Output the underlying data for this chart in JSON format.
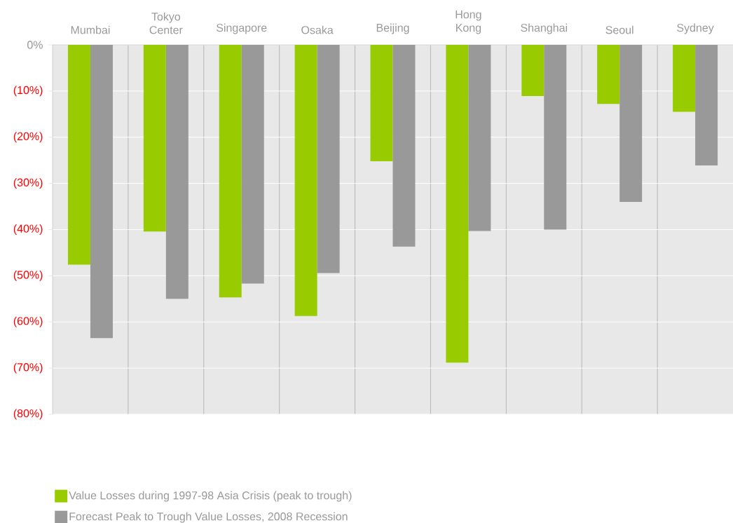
{
  "chart_data": {
    "type": "bar",
    "categories": [
      "Mumbai",
      "Tokyo Center",
      "Singapore",
      "Osaka",
      "Beijing",
      "Hong Kong",
      "Shanghai",
      "Seoul",
      "Sydney"
    ],
    "series": [
      {
        "name": "Value Losses during 1997-98 Asia Crisis (peak to trough)",
        "color": "#99cc00",
        "values": [
          -47.6,
          -40.4,
          -54.7,
          -58.7,
          -25.2,
          -68.8,
          -11.1,
          -12.8,
          -14.5
        ]
      },
      {
        "name": "Forecast Peak to Trough Value Losses, 2008 Recession",
        "color": "#999999",
        "values": [
          -63.5,
          -55.0,
          -51.7,
          -49.4,
          -43.7,
          -40.3,
          -40.0,
          -34.0,
          -26.1
        ]
      }
    ],
    "ylim": [
      -80,
      0
    ],
    "yticks": [
      {
        "value": 0,
        "label": "0%"
      },
      {
        "value": -10,
        "label": "(10%)"
      },
      {
        "value": -20,
        "label": "(20%)"
      },
      {
        "value": -30,
        "label": "(30%)"
      },
      {
        "value": -40,
        "label": "(40%)"
      },
      {
        "value": -50,
        "label": "(50%)"
      },
      {
        "value": -60,
        "label": "(60%)"
      },
      {
        "value": -70,
        "label": "(70%)"
      },
      {
        "value": -80,
        "label": "(80%)"
      }
    ],
    "grid": true,
    "legend": "bottom"
  }
}
